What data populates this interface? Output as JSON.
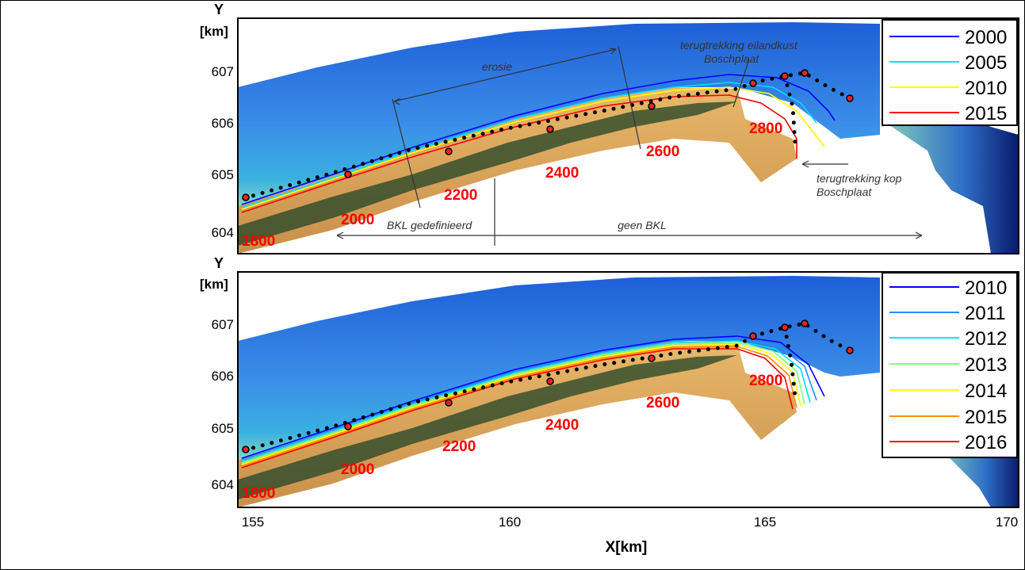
{
  "figure": {
    "y_axis_label": "Y",
    "y_axis_unit": "[km]",
    "x_axis_label": "X[km]",
    "x_ticks": [
      "155",
      "160",
      "165",
      "170"
    ],
    "y_ticks": [
      "604",
      "605",
      "606",
      "607"
    ]
  },
  "colors": {
    "deep_water": "#1e5fd8",
    "shallow_water": "#3ab0e0",
    "sand": "#d9a45a",
    "vegetation": "#2c4a2a",
    "chainage_label": "#ff0000",
    "dots": "#000000"
  },
  "panels": [
    {
      "legend": [
        {
          "year": "2000",
          "color": "#0000ff"
        },
        {
          "year": "2005",
          "color": "#00e0ff"
        },
        {
          "year": "2010",
          "color": "#ffff00"
        },
        {
          "year": "2015",
          "color": "#ff0000"
        }
      ],
      "chainage_labels": [
        "1800",
        "2000",
        "2200",
        "2400",
        "2600",
        "2800"
      ],
      "annotations": {
        "erosion": "erosie",
        "retreat_island_coast_line1": "terugtrekking eilandkust",
        "retreat_island_coast_line2": "Boschplaat",
        "retreat_head_line1": "terugtrekking kop",
        "retreat_head_line2": "Boschplaat",
        "bkl_defined": "BKL gedefinieerd",
        "no_bkl": "geen BKL"
      }
    },
    {
      "legend": [
        {
          "year": "2010",
          "color": "#0000ff"
        },
        {
          "year": "2011",
          "color": "#1e90ff"
        },
        {
          "year": "2012",
          "color": "#00e0ff"
        },
        {
          "year": "2013",
          "color": "#80ff80"
        },
        {
          "year": "2014",
          "color": "#ffff00"
        },
        {
          "year": "2015",
          "color": "#ff8c00"
        },
        {
          "year": "2016",
          "color": "#ff0000"
        }
      ],
      "chainage_labels": [
        "1800",
        "2000",
        "2200",
        "2400",
        "2600",
        "2800"
      ]
    }
  ]
}
